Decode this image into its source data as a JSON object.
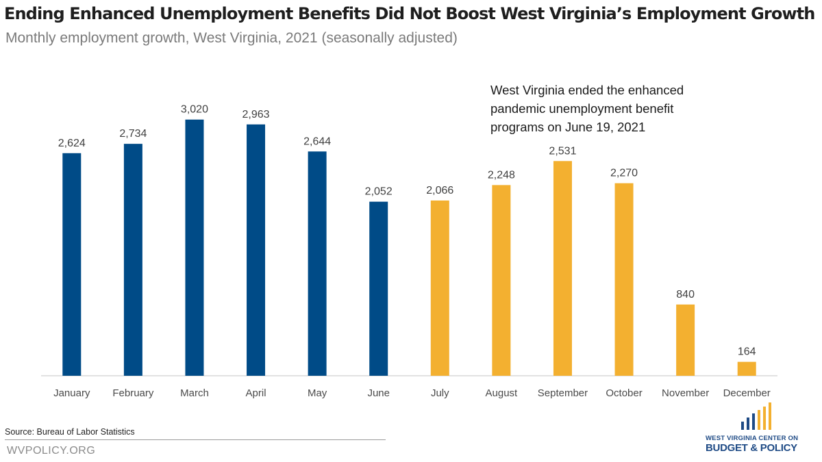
{
  "chart_data": {
    "type": "bar",
    "title": "Ending Enhanced Unemployment Benefits Did Not Boost West Virginia’s Employment Growth",
    "subtitle": "Monthly employment growth, West Virginia, 2021 (seasonally adjusted)",
    "categories": [
      "January",
      "February",
      "March",
      "April",
      "May",
      "June",
      "July",
      "August",
      "September",
      "October",
      "November",
      "December"
    ],
    "values": [
      2624,
      2734,
      3020,
      2963,
      2644,
      2052,
      2066,
      2248,
      2531,
      2270,
      840,
      164
    ],
    "value_labels": [
      "2,624",
      "2,734",
      "3,020",
      "2,963",
      "2,644",
      "2,052",
      "2,066",
      "2,248",
      "2,531",
      "2,270",
      "840",
      "164"
    ],
    "ylim": [
      0,
      3300
    ],
    "grid": false,
    "colors": {
      "before_end": "#004b87",
      "after_end": "#f3b030"
    },
    "color_groups": [
      "before_end",
      "before_end",
      "before_end",
      "before_end",
      "before_end",
      "before_end",
      "after_end",
      "after_end",
      "after_end",
      "after_end",
      "after_end",
      "after_end"
    ],
    "annotation": "West Virginia ended the enhanced pandemic unemployment benefit programs on June 19, 2021"
  },
  "footer": {
    "source": "Source: Bureau of Labor Statistics",
    "site": "WVPOLICY.ORG"
  },
  "logo": {
    "line1": "WEST VIRGINIA CENTER ON",
    "line2": "BUDGET & POLICY"
  }
}
